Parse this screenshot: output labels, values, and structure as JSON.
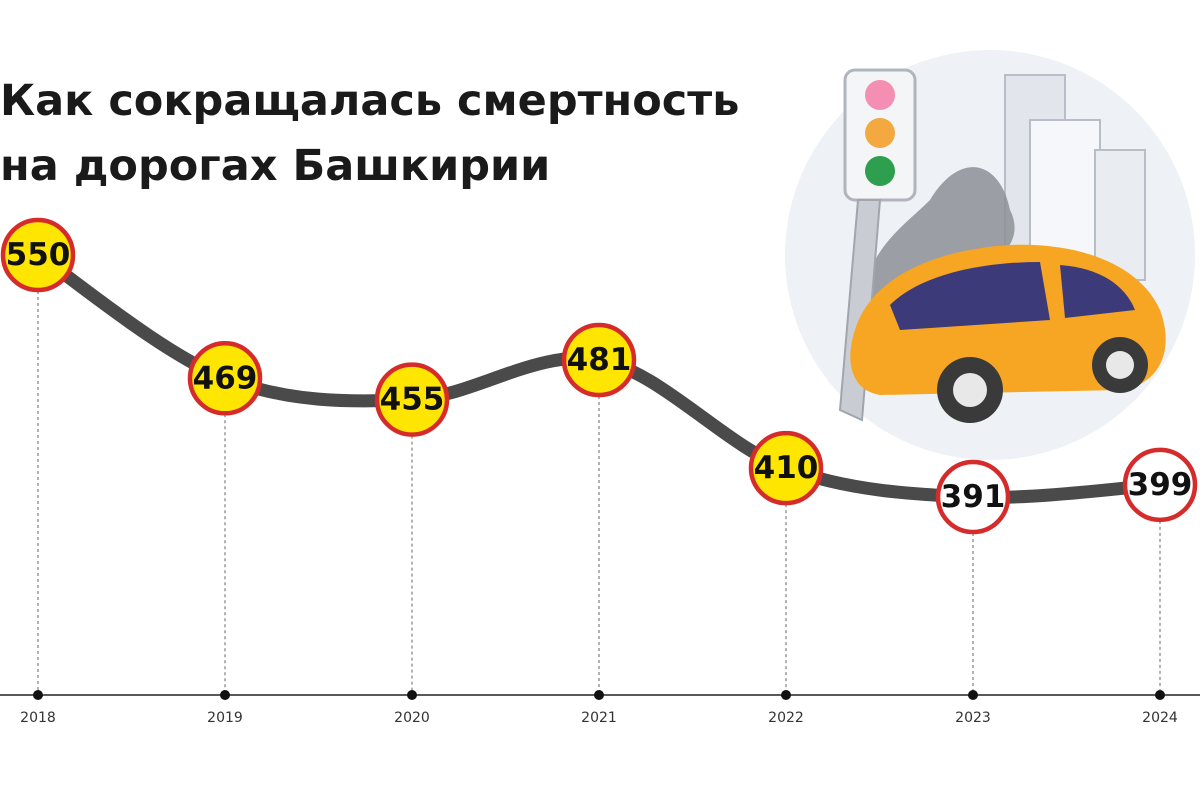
{
  "chart_data": {
    "type": "line",
    "title": [
      "Как сокращалась смертность",
      "на дорогах Башкирии"
    ],
    "categories": [
      "2018",
      "2019",
      "2020",
      "2021",
      "2022",
      "2023",
      "2024"
    ],
    "values": [
      550,
      469,
      455,
      481,
      410,
      391,
      399
    ],
    "color": "#4a4a4a",
    "marker_fills": [
      "#ffe600",
      "#ffe600",
      "#ffe600",
      "#ffe600",
      "#ffe600",
      "#ffffff",
      "#ffffff"
    ],
    "marker_stroke": "#d62b2b"
  }
}
